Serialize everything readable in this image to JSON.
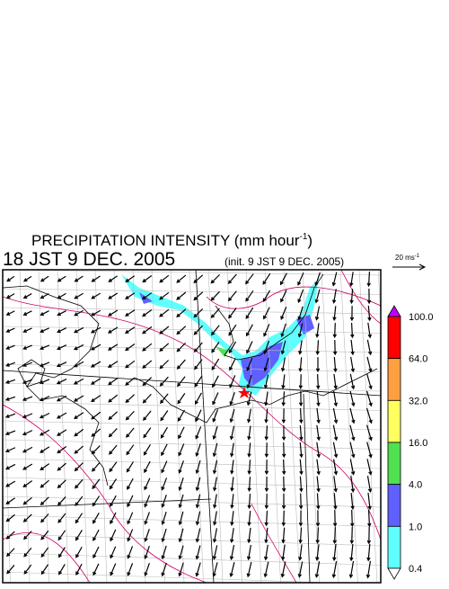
{
  "header": {
    "title": "PRECIPITATION INTENSITY (mm hour",
    "title_exponent": "-1",
    "title_close": ")",
    "valid_time": "18 JST 9 DEC. 2005",
    "init_time": "(init. 9 JST 9 DEC. 2005)"
  },
  "vector_scale": {
    "label": "20 ms",
    "exponent": "-1"
  },
  "colorbar": {
    "labels": [
      "100.0",
      "64.0",
      "32.0",
      "16.0",
      "4.0",
      "1.0",
      "0.4"
    ],
    "colors": [
      "#ff0000",
      "#ffa040",
      "#ffff60",
      "#50e050",
      "#6060ff",
      "#60ffff"
    ],
    "over_color": "#c000ff",
    "under_color": "#ffffff"
  }
}
